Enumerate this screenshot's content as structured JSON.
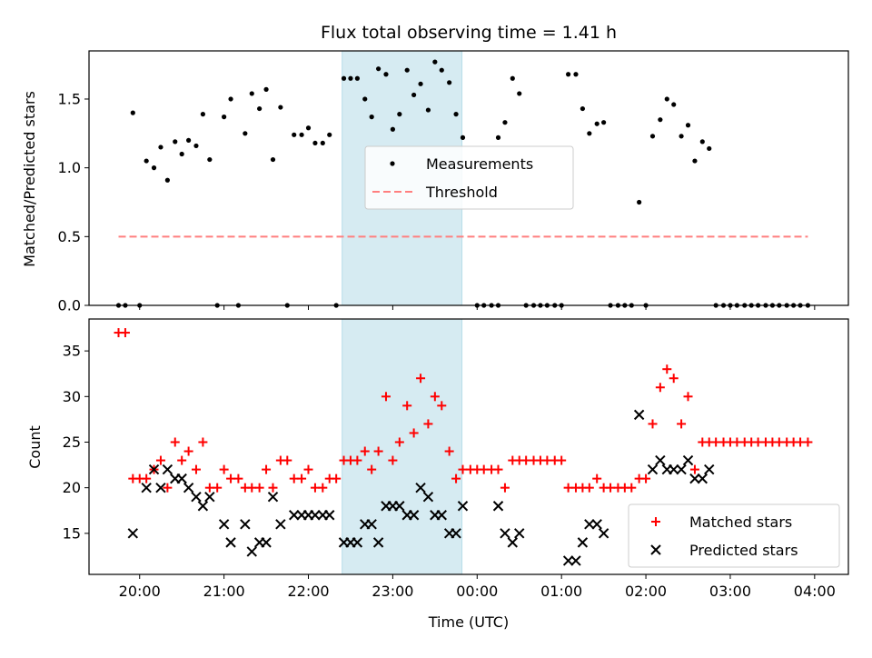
{
  "chart_data": [
    {
      "type": "scatter",
      "title": "Flux total observing time = 1.41 h",
      "xlabel": "",
      "ylabel": "Matched/Predicted stars",
      "ylim": [
        0,
        1.85
      ],
      "yticks": [
        "0.0",
        "0.5",
        "1.0",
        "1.5"
      ],
      "ytick_values": [
        0,
        0.5,
        1.0,
        1.5
      ],
      "xlim": [
        19.4,
        28.4
      ],
      "x_units": "hours UTC (values > 24 are after midnight)",
      "shaded_region": {
        "x": [
          22.4,
          23.82
        ],
        "color": "#add8e6"
      },
      "legend_position": "center",
      "series": [
        {
          "name": "Measurements",
          "marker": "dot",
          "color": "#000000",
          "points": [
            [
              19.75,
              0.0
            ],
            [
              19.83,
              0.0
            ],
            [
              19.92,
              1.4
            ],
            [
              20.0,
              0.0
            ],
            [
              20.08,
              1.05
            ],
            [
              20.17,
              1.0
            ],
            [
              20.25,
              1.15
            ],
            [
              20.33,
              0.91
            ],
            [
              20.42,
              1.19
            ],
            [
              20.5,
              1.1
            ],
            [
              20.58,
              1.2
            ],
            [
              20.67,
              1.16
            ],
            [
              20.75,
              1.39
            ],
            [
              20.83,
              1.06
            ],
            [
              20.92,
              0.0
            ],
            [
              21.0,
              1.37
            ],
            [
              21.08,
              1.5
            ],
            [
              21.17,
              0.0
            ],
            [
              21.25,
              1.25
            ],
            [
              21.33,
              1.54
            ],
            [
              21.42,
              1.43
            ],
            [
              21.5,
              1.57
            ],
            [
              21.58,
              1.06
            ],
            [
              21.67,
              1.44
            ],
            [
              21.75,
              0.0
            ],
            [
              21.83,
              1.24
            ],
            [
              21.92,
              1.24
            ],
            [
              22.0,
              1.29
            ],
            [
              22.08,
              1.18
            ],
            [
              22.17,
              1.18
            ],
            [
              22.25,
              1.24
            ],
            [
              22.33,
              0.0
            ],
            [
              22.42,
              1.65
            ],
            [
              22.5,
              1.65
            ],
            [
              22.58,
              1.65
            ],
            [
              22.67,
              1.5
            ],
            [
              22.75,
              1.37
            ],
            [
              22.83,
              1.72
            ],
            [
              22.92,
              1.68
            ],
            [
              23.0,
              1.28
            ],
            [
              23.08,
              1.39
            ],
            [
              23.17,
              1.71
            ],
            [
              23.25,
              1.53
            ],
            [
              23.33,
              1.61
            ],
            [
              23.42,
              1.42
            ],
            [
              23.5,
              1.77
            ],
            [
              23.58,
              1.71
            ],
            [
              23.67,
              1.62
            ],
            [
              23.75,
              1.39
            ],
            [
              23.83,
              1.22
            ],
            [
              24.0,
              0.0
            ],
            [
              24.08,
              0.0
            ],
            [
              24.17,
              0.0
            ],
            [
              24.25,
              0.0
            ],
            [
              24.25,
              1.22
            ],
            [
              24.33,
              1.33
            ],
            [
              24.42,
              1.65
            ],
            [
              24.5,
              1.54
            ],
            [
              24.58,
              0.0
            ],
            [
              24.67,
              0.0
            ],
            [
              24.75,
              0.0
            ],
            [
              24.83,
              0.0
            ],
            [
              24.92,
              0.0
            ],
            [
              25.0,
              0.0
            ],
            [
              25.08,
              1.68
            ],
            [
              25.17,
              1.68
            ],
            [
              25.25,
              1.43
            ],
            [
              25.33,
              1.25
            ],
            [
              25.42,
              1.32
            ],
            [
              25.5,
              1.33
            ],
            [
              25.58,
              0.0
            ],
            [
              25.67,
              0.0
            ],
            [
              25.75,
              0.0
            ],
            [
              25.83,
              0.0
            ],
            [
              25.92,
              0.75
            ],
            [
              26.0,
              0.0
            ],
            [
              26.08,
              1.23
            ],
            [
              26.17,
              1.35
            ],
            [
              26.25,
              1.5
            ],
            [
              26.33,
              1.46
            ],
            [
              26.42,
              1.23
            ],
            [
              26.5,
              1.31
            ],
            [
              26.58,
              1.05
            ],
            [
              26.67,
              1.19
            ],
            [
              26.75,
              1.14
            ],
            [
              26.83,
              0.0
            ],
            [
              26.92,
              0.0
            ],
            [
              27.0,
              0.0
            ],
            [
              27.08,
              0.0
            ],
            [
              27.17,
              0.0
            ],
            [
              27.25,
              0.0
            ],
            [
              27.33,
              0.0
            ],
            [
              27.42,
              0.0
            ],
            [
              27.5,
              0.0
            ],
            [
              27.58,
              0.0
            ],
            [
              27.67,
              0.0
            ],
            [
              27.75,
              0.0
            ],
            [
              27.83,
              0.0
            ],
            [
              27.92,
              0.0
            ]
          ]
        },
        {
          "name": "Threshold",
          "style": "dashed",
          "color": "#ff7f7f",
          "x": [
            19.75,
            27.92
          ],
          "y": [
            0.5,
            0.5
          ]
        }
      ]
    },
    {
      "type": "scatter",
      "title": "",
      "xlabel": "Time (UTC)",
      "ylabel": "Count",
      "ylim": [
        10.5,
        38.5
      ],
      "yticks": [
        "15",
        "20",
        "25",
        "30",
        "35"
      ],
      "ytick_values": [
        15,
        20,
        25,
        30,
        35
      ],
      "xlim": [
        19.4,
        28.4
      ],
      "xticks": [
        "20:00",
        "21:00",
        "22:00",
        "23:00",
        "00:00",
        "01:00",
        "02:00",
        "03:00",
        "04:00"
      ],
      "xtick_values": [
        20,
        21,
        22,
        23,
        24,
        25,
        26,
        27,
        28
      ],
      "shaded_region": {
        "x": [
          22.4,
          23.82
        ],
        "color": "#add8e6"
      },
      "legend_position": "lower right",
      "series": [
        {
          "name": "Matched stars",
          "marker": "+",
          "color": "#ff0000",
          "points": [
            [
              19.75,
              37
            ],
            [
              19.83,
              37
            ],
            [
              19.92,
              21
            ],
            [
              20.0,
              21
            ],
            [
              20.08,
              21
            ],
            [
              20.17,
              22
            ],
            [
              20.25,
              23
            ],
            [
              20.33,
              20
            ],
            [
              20.42,
              25
            ],
            [
              20.5,
              23
            ],
            [
              20.58,
              24
            ],
            [
              20.67,
              22
            ],
            [
              20.75,
              25
            ],
            [
              20.83,
              20
            ],
            [
              20.92,
              20
            ],
            [
              21.0,
              22
            ],
            [
              21.08,
              21
            ],
            [
              21.17,
              21
            ],
            [
              21.25,
              20
            ],
            [
              21.33,
              20
            ],
            [
              21.42,
              20
            ],
            [
              21.5,
              22
            ],
            [
              21.58,
              20
            ],
            [
              21.67,
              23
            ],
            [
              21.75,
              23
            ],
            [
              21.83,
              21
            ],
            [
              21.92,
              21
            ],
            [
              22.0,
              22
            ],
            [
              22.08,
              20
            ],
            [
              22.17,
              20
            ],
            [
              22.25,
              21
            ],
            [
              22.33,
              21
            ],
            [
              22.42,
              23
            ],
            [
              22.5,
              23
            ],
            [
              22.58,
              23
            ],
            [
              22.67,
              24
            ],
            [
              22.75,
              22
            ],
            [
              22.83,
              24
            ],
            [
              22.92,
              30
            ],
            [
              23.0,
              23
            ],
            [
              23.08,
              25
            ],
            [
              23.17,
              29
            ],
            [
              23.25,
              26
            ],
            [
              23.33,
              32
            ],
            [
              23.42,
              27
            ],
            [
              23.5,
              30
            ],
            [
              23.58,
              29
            ],
            [
              23.67,
              24
            ],
            [
              23.75,
              21
            ],
            [
              23.83,
              22
            ],
            [
              23.92,
              22
            ],
            [
              24.0,
              22
            ],
            [
              24.08,
              22
            ],
            [
              24.17,
              22
            ],
            [
              24.25,
              22
            ],
            [
              24.33,
              20
            ],
            [
              24.42,
              23
            ],
            [
              24.5,
              23
            ],
            [
              24.58,
              23
            ],
            [
              24.67,
              23
            ],
            [
              24.75,
              23
            ],
            [
              24.83,
              23
            ],
            [
              24.92,
              23
            ],
            [
              25.0,
              23
            ],
            [
              25.08,
              20
            ],
            [
              25.17,
              20
            ],
            [
              25.25,
              20
            ],
            [
              25.33,
              20
            ],
            [
              25.42,
              21
            ],
            [
              25.5,
              20
            ],
            [
              25.58,
              20
            ],
            [
              25.67,
              20
            ],
            [
              25.75,
              20
            ],
            [
              25.83,
              20
            ],
            [
              25.92,
              21
            ],
            [
              26.0,
              21
            ],
            [
              26.08,
              27
            ],
            [
              26.17,
              31
            ],
            [
              26.25,
              33
            ],
            [
              26.33,
              32
            ],
            [
              26.42,
              27
            ],
            [
              26.5,
              30
            ],
            [
              26.58,
              22
            ],
            [
              26.67,
              25
            ],
            [
              26.75,
              25
            ],
            [
              26.83,
              25
            ],
            [
              26.92,
              25
            ],
            [
              27.0,
              25
            ],
            [
              27.08,
              25
            ],
            [
              27.17,
              25
            ],
            [
              27.25,
              25
            ],
            [
              27.33,
              25
            ],
            [
              27.42,
              25
            ],
            [
              27.5,
              25
            ],
            [
              27.58,
              25
            ],
            [
              27.67,
              25
            ],
            [
              27.75,
              25
            ],
            [
              27.83,
              25
            ],
            [
              27.92,
              25
            ]
          ]
        },
        {
          "name": "Predicted stars",
          "marker": "x",
          "color": "#000000",
          "points": [
            [
              19.92,
              15
            ],
            [
              20.08,
              20
            ],
            [
              20.17,
              22
            ],
            [
              20.25,
              20
            ],
            [
              20.33,
              22
            ],
            [
              20.42,
              21
            ],
            [
              20.5,
              21
            ],
            [
              20.58,
              20
            ],
            [
              20.67,
              19
            ],
            [
              20.75,
              18
            ],
            [
              20.83,
              19
            ],
            [
              21.0,
              16
            ],
            [
              21.08,
              14
            ],
            [
              21.25,
              16
            ],
            [
              21.33,
              13
            ],
            [
              21.42,
              14
            ],
            [
              21.5,
              14
            ],
            [
              21.58,
              19
            ],
            [
              21.67,
              16
            ],
            [
              21.83,
              17
            ],
            [
              21.92,
              17
            ],
            [
              22.0,
              17
            ],
            [
              22.08,
              17
            ],
            [
              22.17,
              17
            ],
            [
              22.25,
              17
            ],
            [
              22.42,
              14
            ],
            [
              22.5,
              14
            ],
            [
              22.58,
              14
            ],
            [
              22.67,
              16
            ],
            [
              22.75,
              16
            ],
            [
              22.83,
              14
            ],
            [
              22.92,
              18
            ],
            [
              23.0,
              18
            ],
            [
              23.08,
              18
            ],
            [
              23.17,
              17
            ],
            [
              23.25,
              17
            ],
            [
              23.33,
              20
            ],
            [
              23.42,
              19
            ],
            [
              23.5,
              17
            ],
            [
              23.58,
              17
            ],
            [
              23.67,
              15
            ],
            [
              23.75,
              15
            ],
            [
              23.83,
              18
            ],
            [
              24.25,
              18
            ],
            [
              24.33,
              15
            ],
            [
              24.42,
              14
            ],
            [
              24.5,
              15
            ],
            [
              25.08,
              12
            ],
            [
              25.17,
              12
            ],
            [
              25.25,
              14
            ],
            [
              25.33,
              16
            ],
            [
              25.42,
              16
            ],
            [
              25.5,
              15
            ],
            [
              25.92,
              28
            ],
            [
              26.08,
              22
            ],
            [
              26.17,
              23
            ],
            [
              26.25,
              22
            ],
            [
              26.33,
              22
            ],
            [
              26.42,
              22
            ],
            [
              26.5,
              23
            ],
            [
              26.58,
              21
            ],
            [
              26.67,
              21
            ],
            [
              26.75,
              22
            ]
          ]
        }
      ]
    }
  ]
}
